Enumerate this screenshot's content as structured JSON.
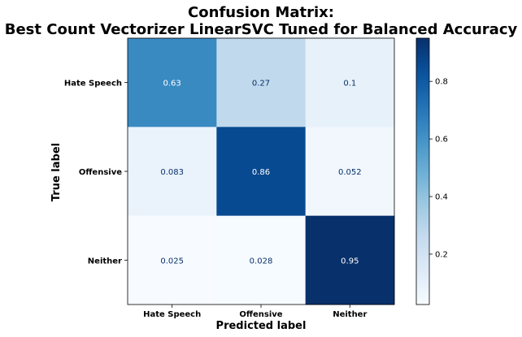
{
  "chart_data": {
    "type": "heatmap",
    "title_line1": "Confusion Matrix:",
    "title_line2": "Best Count Vectorizer LinearSVC Tuned for Balanced Accuracy",
    "xlabel": "Predicted label",
    "ylabel": "True label",
    "x_categories": [
      "Hate Speech",
      "Offensive",
      "Neither"
    ],
    "y_categories": [
      "Hate Speech",
      "Offensive",
      "Neither"
    ],
    "values": [
      [
        0.63,
        0.27,
        0.1
      ],
      [
        0.083,
        0.86,
        0.052
      ],
      [
        0.025,
        0.028,
        0.95
      ]
    ],
    "value_labels": [
      [
        "0.63",
        "0.27",
        "0.1"
      ],
      [
        "0.083",
        "0.86",
        "0.052"
      ],
      [
        "0.025",
        "0.028",
        "0.95"
      ]
    ],
    "colormap": "Blues",
    "colorbar": {
      "range": [
        0.025,
        0.95
      ],
      "ticks": [
        0.2,
        0.4,
        0.6,
        0.8
      ],
      "tick_labels": [
        "0.2",
        "0.4",
        "0.6",
        "0.8"
      ]
    },
    "grid": false
  }
}
